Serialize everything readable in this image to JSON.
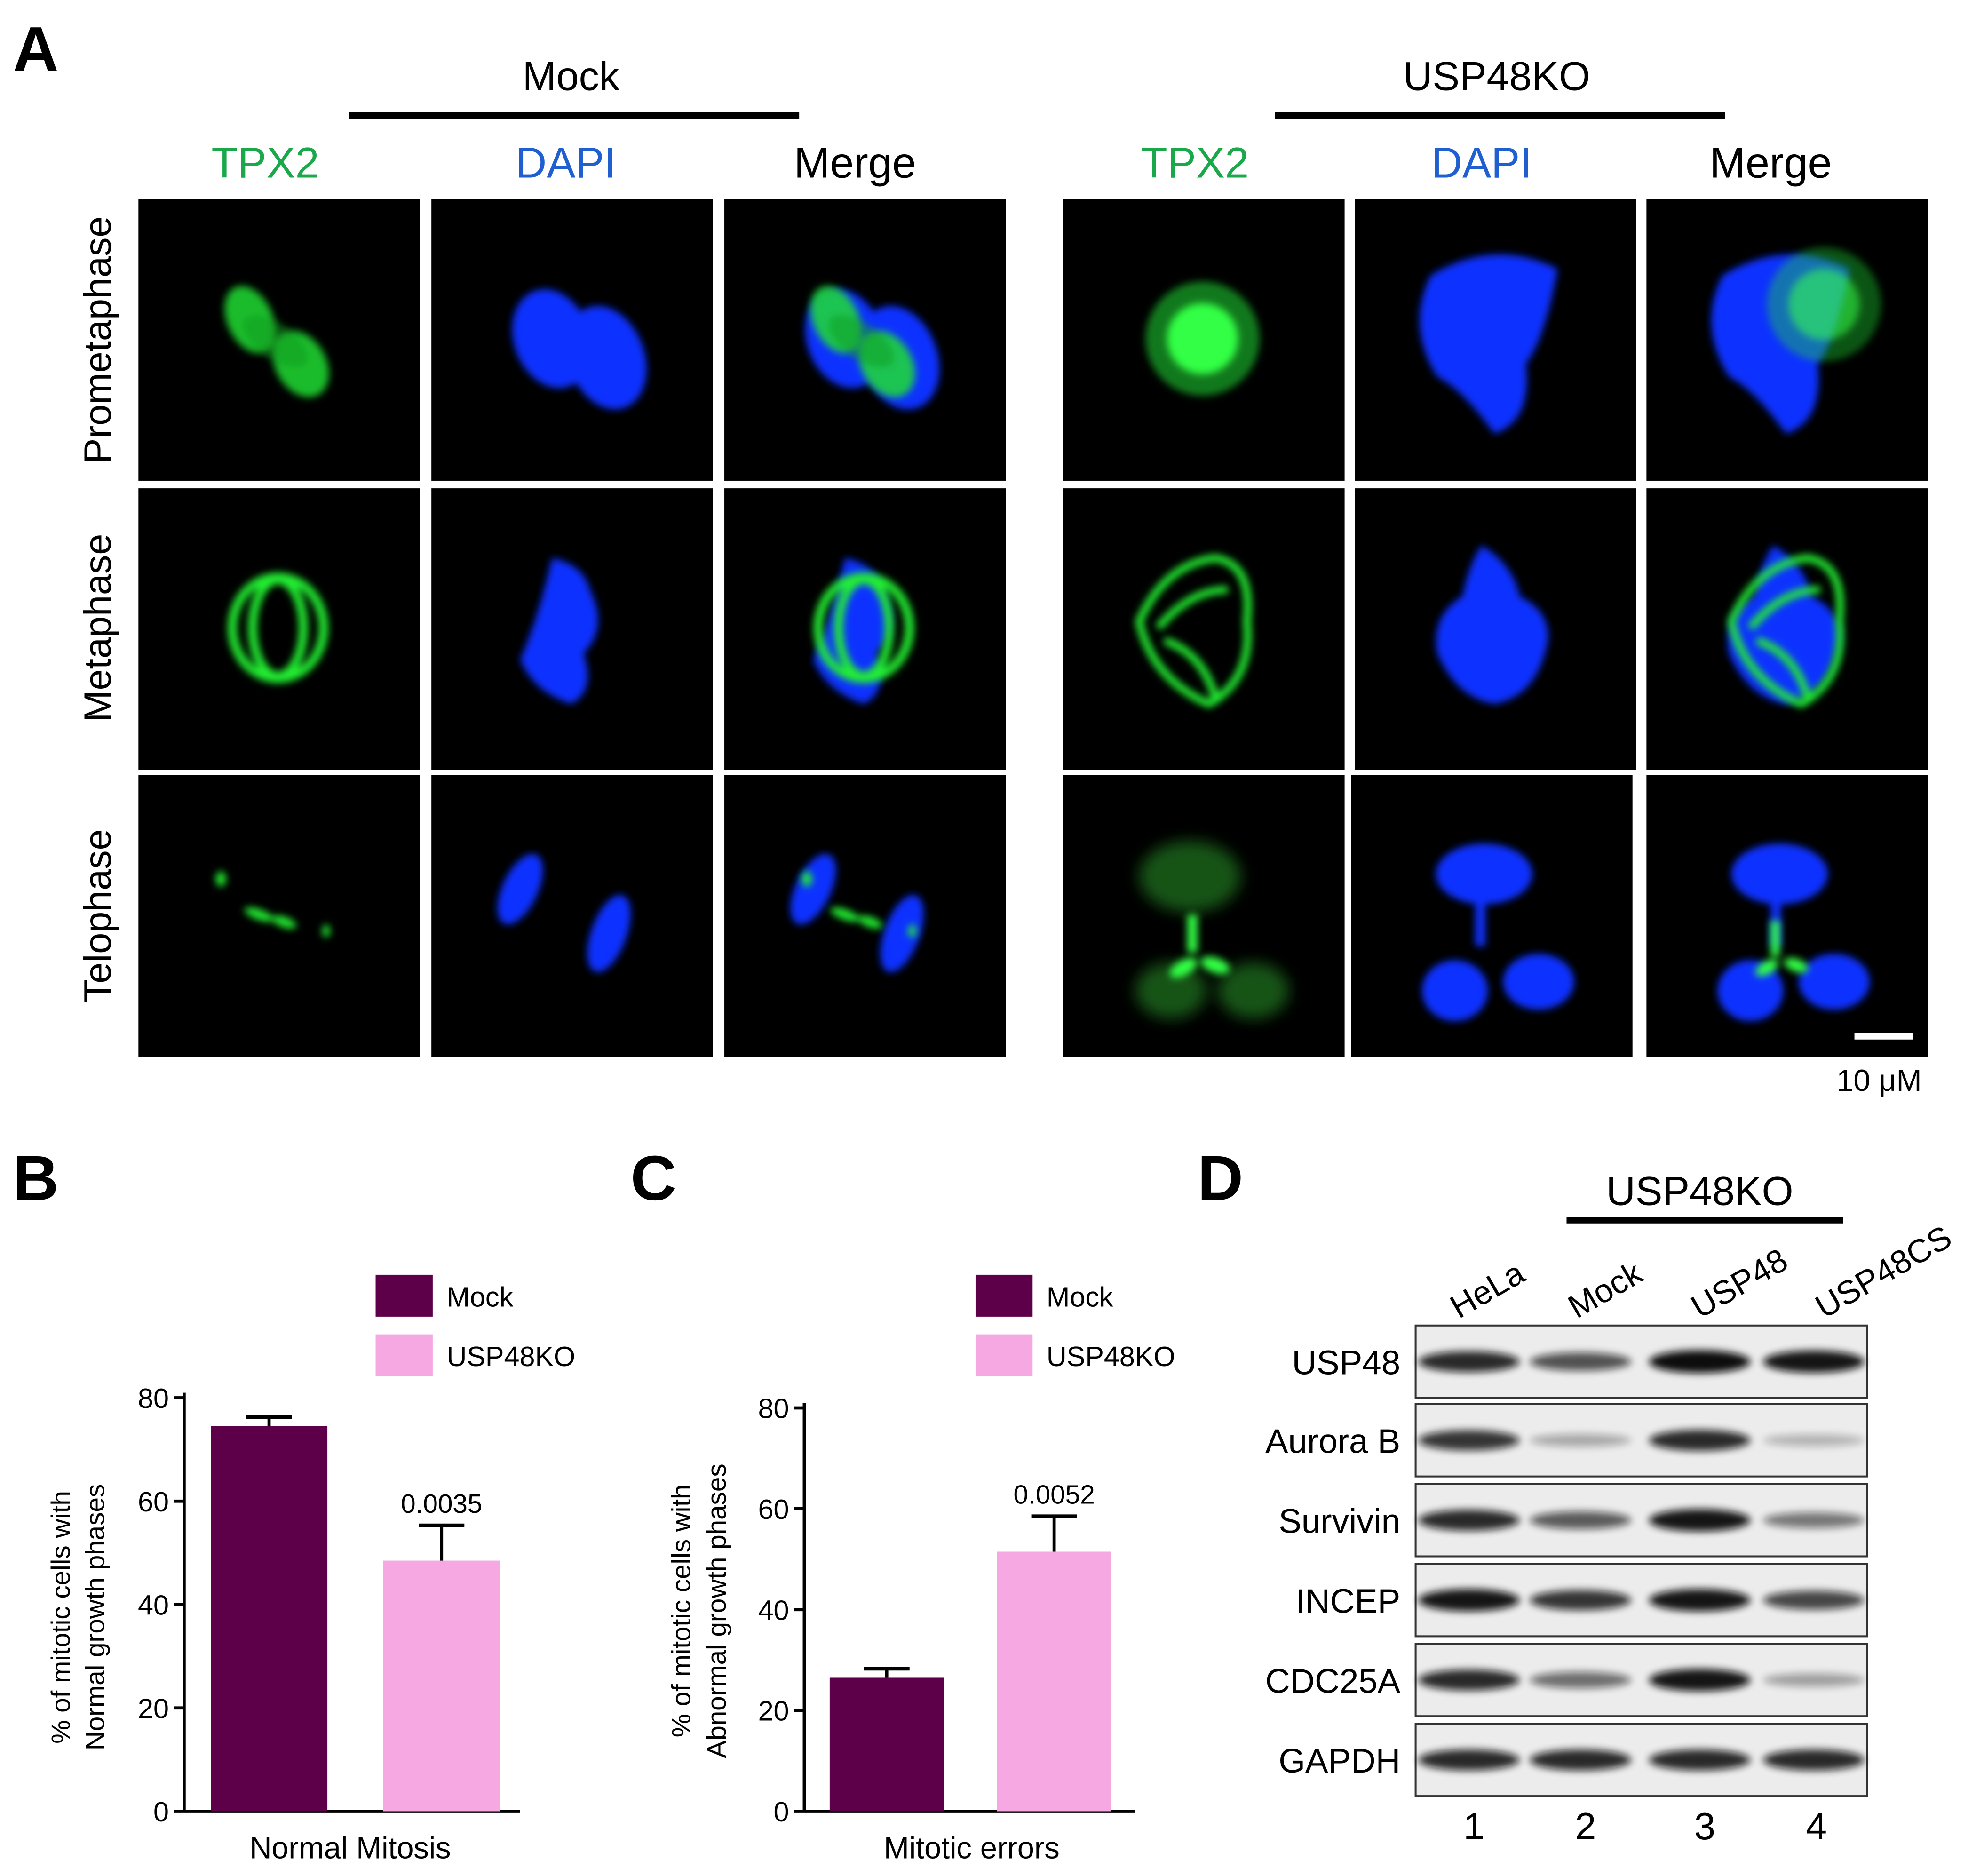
{
  "panel_a": {
    "letter": "A",
    "group_mock": "Mock",
    "group_ko": "USP48KO",
    "columns": [
      "TPX2",
      "DAPI",
      "Merge",
      "TPX2",
      "DAPI",
      "Merge"
    ],
    "rows": [
      "Prometaphase",
      "Metaphase",
      "Telophase"
    ],
    "scale_bar": "10 μM",
    "colors": {
      "tpx2": "#1aa84a",
      "dapi": "#1f5fd0",
      "merge": "#000000",
      "green_signal": "#22ee33",
      "blue_signal": "#1133ff"
    }
  },
  "panel_b": {
    "letter": "B",
    "legend": [
      "Mock",
      "USP48KO"
    ],
    "ylabel_line1": "% of mitotic cells with",
    "ylabel_line2": "Normal growth phases",
    "xlabel": "Normal Mitosis",
    "pvalue": "0.0035",
    "ticks": [
      "0",
      "20",
      "40",
      "60",
      "80"
    ]
  },
  "panel_c": {
    "letter": "C",
    "legend": [
      "Mock",
      "USP48KO"
    ],
    "ylabel_line1": "% of mitotic cells with",
    "ylabel_line2": "Abnormal growth phases",
    "xlabel": "Mitotic errors",
    "pvalue": "0.0052",
    "ticks": [
      "0",
      "20",
      "40",
      "60",
      "80"
    ]
  },
  "panel_d": {
    "letter": "D",
    "group_label": "USP48KO",
    "lanes": [
      "HeLa",
      "Mock",
      "USP48",
      "USP48CS"
    ],
    "lane_numbers": [
      "1",
      "2",
      "3",
      "4"
    ],
    "proteins": [
      "USP48",
      "Aurora B",
      "Survivin",
      "INCEP",
      "CDC25A",
      "GAPDH"
    ],
    "band_intensity": [
      [
        0.85,
        0.65,
        1.0,
        0.95
      ],
      [
        0.8,
        0.2,
        0.85,
        0.15
      ],
      [
        0.85,
        0.6,
        0.95,
        0.45
      ],
      [
        0.95,
        0.8,
        0.95,
        0.7
      ],
      [
        0.85,
        0.5,
        0.95,
        0.25
      ],
      [
        0.85,
        0.85,
        0.85,
        0.85
      ]
    ]
  },
  "chart_data": [
    {
      "type": "bar",
      "panel": "B",
      "categories": [
        "Normal Mitosis"
      ],
      "series": [
        {
          "name": "Mock",
          "values": [
            74.5
          ],
          "error": [
            1.8
          ],
          "color": "#5e0049"
        },
        {
          "name": "USP48KO",
          "values": [
            48.5
          ],
          "error": [
            6.8
          ],
          "color": "#f5a8e2"
        }
      ],
      "xlabel": "Normal Mitosis",
      "ylabel": "% of mitotic cells with Normal growth phases",
      "ylim": [
        0,
        80
      ],
      "annotation": "0.0035",
      "legend": "top"
    },
    {
      "type": "bar",
      "panel": "C",
      "categories": [
        "Mitotic errors"
      ],
      "series": [
        {
          "name": "Mock",
          "values": [
            26.5
          ],
          "error": [
            1.8
          ],
          "color": "#5e0049"
        },
        {
          "name": "USP48KO",
          "values": [
            51.5
          ],
          "error": [
            7.0
          ],
          "color": "#f5a8e2"
        }
      ],
      "xlabel": "Mitotic errors",
      "ylabel": "% of mitotic cells with Abnormal growth phases",
      "ylim": [
        0,
        80
      ],
      "annotation": "0.0052",
      "legend": "top"
    }
  ]
}
